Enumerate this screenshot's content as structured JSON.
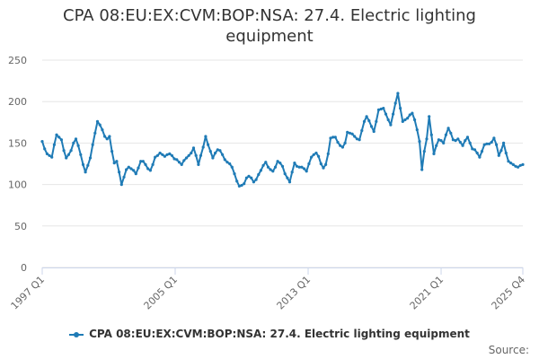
{
  "chart_data": {
    "type": "line",
    "title": "CPA 08:EU:EX:CVM:BOP:NSA: 27.4. Electric lighting equipment",
    "xlabel": "",
    "ylabel": "",
    "ylim": [
      0,
      250
    ],
    "y_ticks": [
      "0",
      "50",
      "100",
      "150",
      "200",
      "250"
    ],
    "x_ticks": [
      "1997 Q1",
      "2005 Q1",
      "2013 Q1",
      "2021 Q1",
      "2025 Q4"
    ],
    "x_range": [
      "1997 Q1",
      "2025 Q4"
    ],
    "frequency": "monthly",
    "grid": true,
    "legend_position": "bottom",
    "series": [
      {
        "name": "CPA 08:EU:EX:CVM:BOP:NSA: 27.4. Electric lighting equipment",
        "color": "#1f7bb6",
        "values": [
          152,
          143,
          137,
          135,
          133,
          148,
          160,
          157,
          154,
          141,
          132,
          136,
          141,
          150,
          155,
          147,
          136,
          124,
          115,
          123,
          132,
          148,
          162,
          176,
          172,
          166,
          158,
          155,
          158,
          140,
          126,
          128,
          115,
          100,
          109,
          118,
          121,
          119,
          117,
          113,
          120,
          128,
          128,
          124,
          119,
          117,
          124,
          133,
          135,
          138,
          136,
          134,
          136,
          137,
          135,
          131,
          130,
          127,
          124,
          129,
          132,
          135,
          138,
          144,
          135,
          124,
          135,
          145,
          158,
          148,
          140,
          132,
          138,
          142,
          141,
          136,
          130,
          127,
          125,
          121,
          113,
          104,
          98,
          99,
          101,
          108,
          110,
          108,
          103,
          106,
          112,
          117,
          123,
          127,
          121,
          118,
          116,
          121,
          128,
          126,
          122,
          113,
          108,
          103,
          115,
          126,
          122,
          121,
          121,
          119,
          116,
          125,
          133,
          136,
          138,
          134,
          125,
          120,
          124,
          137,
          156,
          157,
          157,
          151,
          147,
          145,
          150,
          163,
          162,
          161,
          158,
          155,
          154,
          165,
          176,
          182,
          177,
          170,
          164,
          176,
          190,
          191,
          192,
          185,
          178,
          172,
          185,
          198,
          210,
          192,
          176,
          178,
          180,
          184,
          186,
          178,
          166,
          152,
          118,
          140,
          155,
          182,
          160,
          137,
          147,
          154,
          153,
          150,
          160,
          168,
          162,
          154,
          153,
          155,
          151,
          147,
          153,
          157,
          150,
          143,
          142,
          138,
          133,
          140,
          148,
          149,
          149,
          151,
          156,
          148,
          135,
          141,
          150,
          138,
          128,
          126,
          124,
          122,
          121,
          123,
          124
        ]
      }
    ]
  },
  "credits": "Source:"
}
